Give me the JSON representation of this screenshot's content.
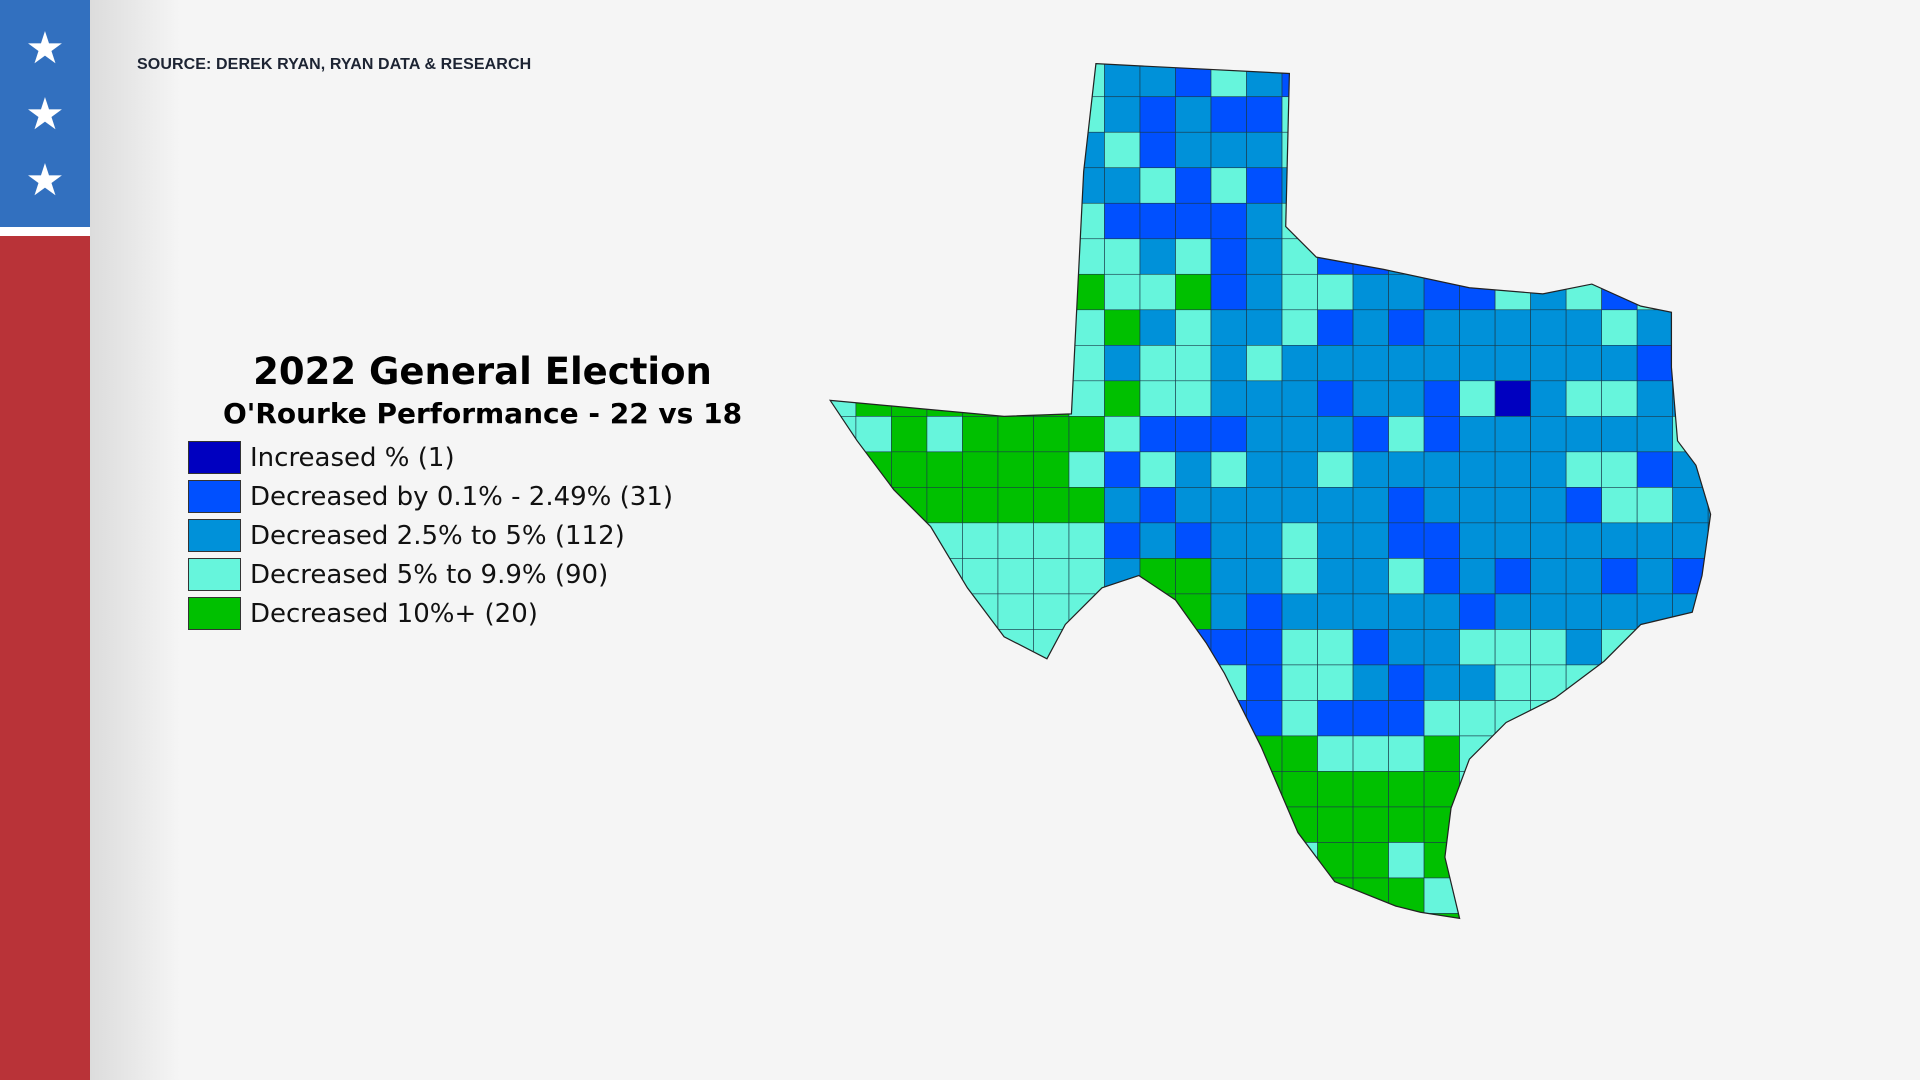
{
  "source": "SOURCE: DEREK RYAN, RYAN DATA & RESEARCH",
  "sidebar": {
    "stars": [
      "★",
      "★",
      "★"
    ],
    "colors": {
      "blue": "#3270bf",
      "red": "#b93338"
    }
  },
  "title": "2022 General Election",
  "subtitle": "O'Rourke Performance - 22 vs 18",
  "legend": [
    {
      "label": "Increased % (1)",
      "color": "#0000c0"
    },
    {
      "label": "Decreased by 0.1% - 2.49% (31)",
      "color": "#0050ff"
    },
    {
      "label": "Decreased 2.5% to 5% (112)",
      "color": "#0091d9"
    },
    {
      "label": "Decreased 5% to 9.9% (90)",
      "color": "#66f5dc"
    },
    {
      "label": "Decreased 10%+ (20)",
      "color": "#00c000"
    }
  ]
}
